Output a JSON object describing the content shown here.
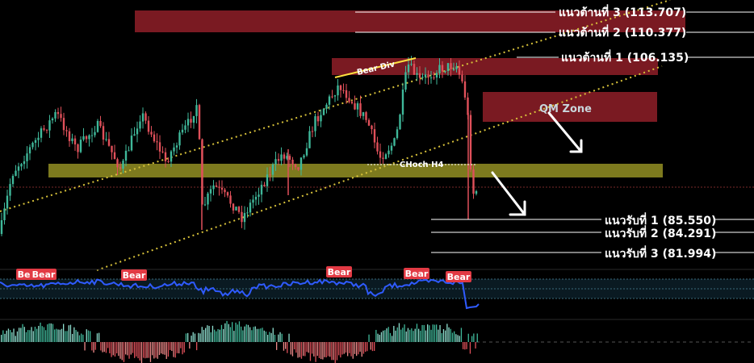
{
  "chart_data": {
    "type": "candlestick-annotated",
    "resistance_levels": [
      {
        "label": "แนวต้านที่ 3 (113.707)",
        "value": 113.707
      },
      {
        "label": "แนวต้านที่ 2 (110.377)",
        "value": 110.377
      },
      {
        "label": "แนวต้านที่ 1 (106.135)",
        "value": 106.135
      }
    ],
    "support_levels": [
      {
        "label": "แนวรับที่ 1 (85.550)",
        "value": 85.55
      },
      {
        "label": "แนวรับที่ 2 (84.291)",
        "value": 84.291
      },
      {
        "label": "แนวรับที่ 3 (81.994)",
        "value": 81.994
      }
    ],
    "annotations": {
      "bear_div": "Bear Div",
      "qm_zone": "QM Zone",
      "choch": "CHoch H4"
    },
    "indicator_tags": [
      "Bear",
      "Bear",
      "Bear",
      "Bear",
      "Bear",
      "Bear"
    ]
  },
  "colors": {
    "background": "#000000",
    "resistance_zone": "#7a1a22",
    "support_zone": "#7d7a1e",
    "channel": "#d8c23a",
    "bull": "#3fb89a",
    "bear": "#e0505a",
    "indicator_line": "#2f5bff",
    "tag_bg": "#e23a44"
  }
}
